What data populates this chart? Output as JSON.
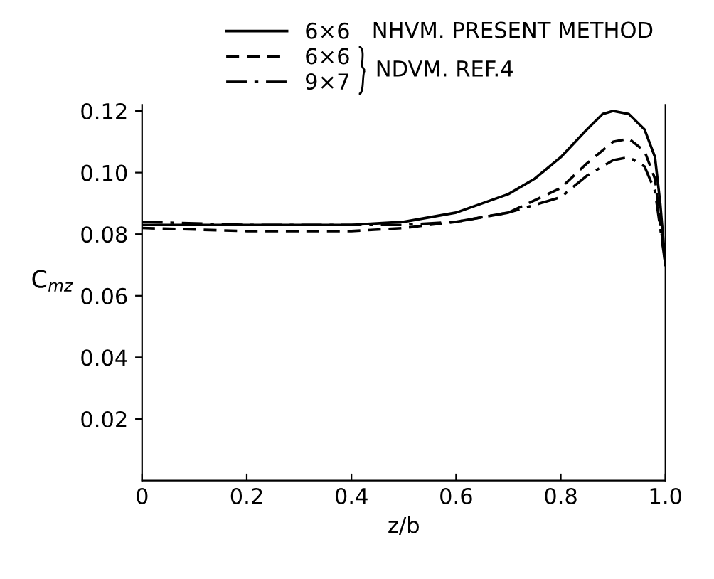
{
  "chart_data": {
    "type": "line",
    "xlabel": "z/b",
    "ylabel": "C$_{mz}$",
    "xlim": [
      0,
      1.0
    ],
    "ylim": [
      0,
      0.122
    ],
    "xticks": [
      {
        "value": 0,
        "label": "0"
      },
      {
        "value": 0.2,
        "label": "0.2"
      },
      {
        "value": 0.4,
        "label": "0.4"
      },
      {
        "value": 0.6,
        "label": "0.6"
      },
      {
        "value": 0.8,
        "label": "0.8"
      },
      {
        "value": 1.0,
        "label": "1.0"
      }
    ],
    "yticks": [
      {
        "value": 0.02,
        "label": "0.02"
      },
      {
        "value": 0.04,
        "label": "0.04"
      },
      {
        "value": 0.06,
        "label": "0.06"
      },
      {
        "value": 0.08,
        "label": "0.08"
      },
      {
        "value": 0.1,
        "label": "0.10"
      },
      {
        "value": 0.12,
        "label": "0.12"
      }
    ],
    "grid": false,
    "legend": "top",
    "marker": "none",
    "annotations": [
      "NHVM. PRESENT METHOD",
      "NDVM. REF.4"
    ],
    "series": [
      {
        "name": "6×6",
        "color": "#000000",
        "line_style": "solid",
        "x": [
          0,
          0.1,
          0.2,
          0.3,
          0.4,
          0.5,
          0.6,
          0.7,
          0.75,
          0.8,
          0.85,
          0.88,
          0.9,
          0.93,
          0.96,
          0.98,
          0.99,
          1.0
        ],
        "values": [
          0.083,
          0.083,
          0.083,
          0.083,
          0.083,
          0.084,
          0.087,
          0.093,
          0.098,
          0.105,
          0.114,
          0.119,
          0.12,
          0.119,
          0.114,
          0.105,
          0.09,
          0.07
        ]
      },
      {
        "name": "6×6",
        "color": "#000000",
        "line_style": "dashed",
        "x": [
          0,
          0.2,
          0.4,
          0.5,
          0.6,
          0.7,
          0.8,
          0.85,
          0.9,
          0.93,
          0.96,
          0.98,
          1.0
        ],
        "values": [
          0.082,
          0.081,
          0.081,
          0.082,
          0.084,
          0.087,
          0.095,
          0.103,
          0.11,
          0.111,
          0.107,
          0.098,
          0.07
        ]
      },
      {
        "name": "9×7",
        "color": "#000000",
        "line_style": "dashdot",
        "x": [
          0,
          0.2,
          0.4,
          0.5,
          0.6,
          0.7,
          0.8,
          0.85,
          0.9,
          0.93,
          0.96,
          0.98,
          1.0
        ],
        "values": [
          0.084,
          0.083,
          0.083,
          0.083,
          0.084,
          0.087,
          0.092,
          0.099,
          0.104,
          0.105,
          0.102,
          0.094,
          0.07
        ]
      }
    ]
  }
}
